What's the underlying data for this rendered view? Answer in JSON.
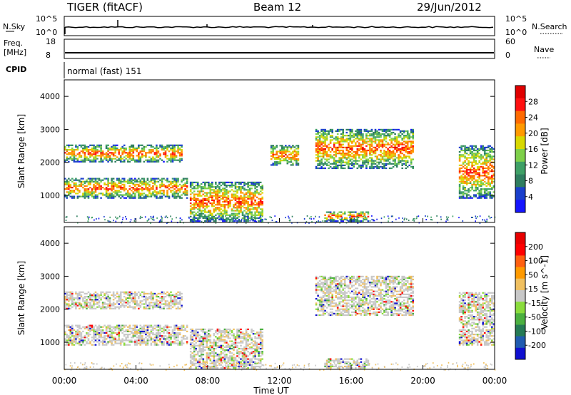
{
  "header": {
    "title": "TIGER (fitACF)",
    "beam": "Beam 12",
    "date": "29/Jun/2012"
  },
  "strips": {
    "nsky_label": "N.Sky",
    "nsearch_label": "N.Search",
    "freq_label_line1": "Freq.",
    "freq_label_line2": "[MHz]",
    "nave_label": "Nave",
    "cpid_label": "CPID",
    "noise_ticks_left": [
      "10^5",
      "10^0"
    ],
    "noise_ticks_right": [
      "10^5",
      "10^0"
    ],
    "freq_ticks": [
      "18",
      "8"
    ],
    "nave_ticks": [
      "60",
      "0"
    ],
    "cpid_text": "normal (fast) 151",
    "noise_trace_value": "10^0.4",
    "freq_trace_value_mhz": 10.5
  },
  "colors": {
    "power_scale": [
      "#1515ff",
      "#1a3fcc",
      "#2e7d5f",
      "#3ea066",
      "#7ed04a",
      "#d8d800",
      "#ff9a00",
      "#ff6a00",
      "#ff1010",
      "#e00000"
    ],
    "velocity_scale": [
      "#1010d0",
      "#205bb0",
      "#257a55",
      "#4bb040",
      "#8adc3c",
      "#c8c8c8",
      "#f0c060",
      "#ff9a00",
      "#ff6010",
      "#ff0000",
      "#e80000"
    ]
  },
  "chart_data": [
    {
      "type": "heatmap",
      "panel": "power",
      "ylabel": "Slant Range [km]",
      "colorbar_label": "Power [dB]",
      "colorbar_ticks": [
        "28",
        "24",
        "20",
        "16",
        "12",
        "8",
        "4"
      ],
      "xlim": [
        "00:00",
        "24:00"
      ],
      "ylim": [
        180,
        4500
      ],
      "y_ticks": [
        "4000",
        "3000",
        "2000",
        "1000"
      ],
      "echo_regions": [
        {
          "t_start": 0.0,
          "t_end": 6.8,
          "range_low": 900,
          "range_high": 1500,
          "power_db": "12-24"
        },
        {
          "t_start": 0.0,
          "t_end": 6.5,
          "range_low": 2000,
          "range_high": 2500,
          "power_db": "4-20"
        },
        {
          "t_start": 7.0,
          "t_end": 11.0,
          "range_low": 200,
          "range_high": 1400,
          "power_db": "8-28"
        },
        {
          "t_start": 11.5,
          "t_end": 13.0,
          "range_low": 1900,
          "range_high": 2500,
          "power_db": "4-12"
        },
        {
          "t_start": 14.5,
          "t_end": 17.0,
          "range_low": 200,
          "range_high": 500,
          "power_db": "8-24"
        },
        {
          "t_start": 14.0,
          "t_end": 19.5,
          "range_low": 1800,
          "range_high": 3000,
          "power_db": "4-16"
        },
        {
          "t_start": 22.0,
          "t_end": 24.0,
          "range_low": 900,
          "range_high": 2500,
          "power_db": "8-24"
        }
      ]
    },
    {
      "type": "heatmap",
      "panel": "velocity",
      "ylabel": "Slant Range [km]",
      "xlabel": "Time UT",
      "colorbar_label": "Velocity [m s^-1]",
      "colorbar_ticks": [
        "200",
        "100",
        "50",
        "15",
        "-15",
        "-50",
        "-100",
        "-200"
      ],
      "x_ticks": [
        "00:00",
        "04:00",
        "08:00",
        "12:00",
        "16:00",
        "20:00",
        "00:00"
      ],
      "xlim": [
        "00:00",
        "24:00"
      ],
      "ylim": [
        180,
        4500
      ],
      "y_ticks": [
        "4000",
        "3000",
        "2000",
        "1000"
      ],
      "echo_regions": [
        {
          "t_start": 0.0,
          "t_end": 6.8,
          "range_low": 900,
          "range_high": 1500,
          "velocity_ms": "-15 to 15"
        },
        {
          "t_start": 0.0,
          "t_end": 6.5,
          "range_low": 2000,
          "range_high": 2500,
          "velocity_ms": "-50 to 15"
        },
        {
          "t_start": 7.0,
          "t_end": 11.0,
          "range_low": 200,
          "range_high": 1400,
          "velocity_ms": "-15 to 50"
        },
        {
          "t_start": 14.5,
          "t_end": 17.0,
          "range_low": 200,
          "range_high": 500,
          "velocity_ms": "15 to 50"
        },
        {
          "t_start": 14.0,
          "t_end": 19.5,
          "range_low": 1800,
          "range_high": 3000,
          "velocity_ms": "-50 to 15"
        },
        {
          "t_start": 22.0,
          "t_end": 24.0,
          "range_low": 900,
          "range_high": 2500,
          "velocity_ms": "-15 to 50"
        }
      ]
    }
  ]
}
